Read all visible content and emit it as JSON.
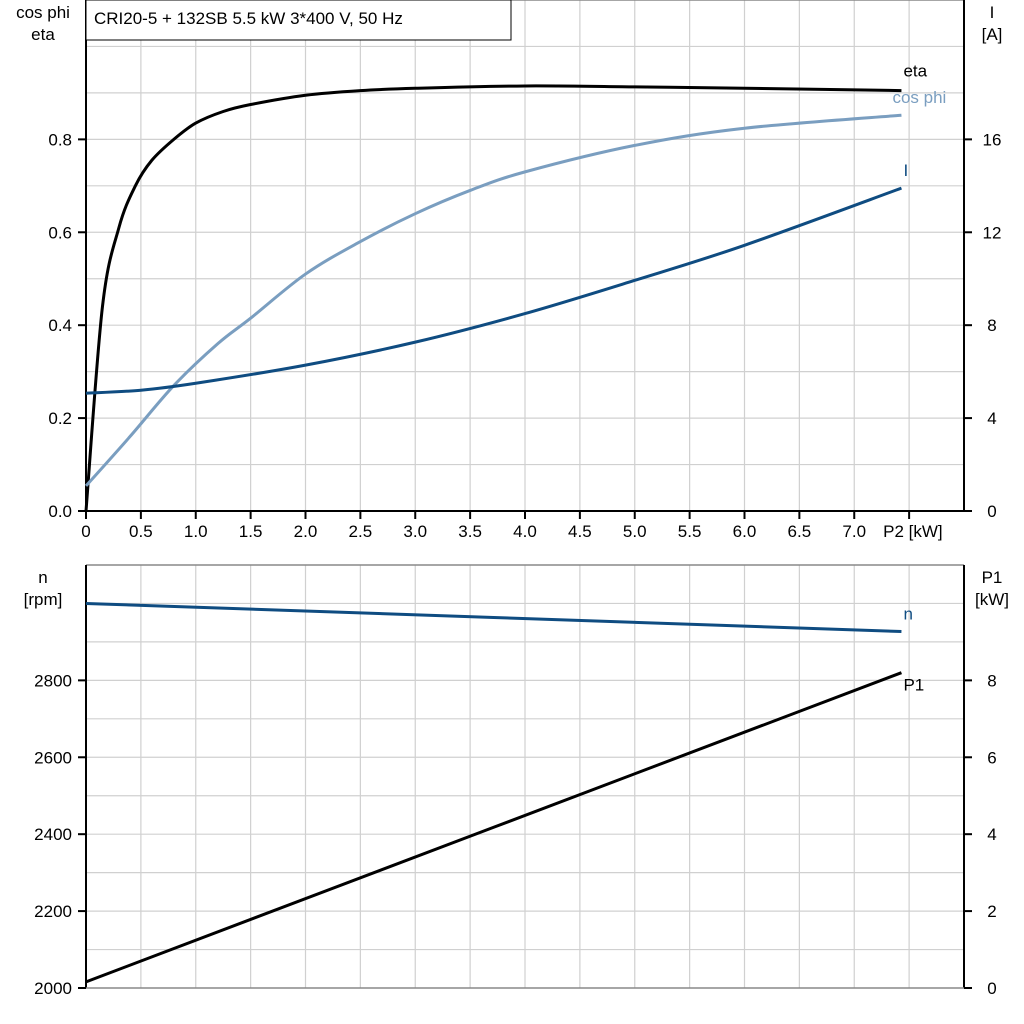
{
  "title": "CRI20-5 + 132SB   5.5 kW   3*400 V, 50 Hz",
  "colors": {
    "eta": "#000000",
    "cos_phi": "#7a9ec0",
    "I": "#0f4c81",
    "n": "#0f4c81",
    "P1": "#000000",
    "grid": "#d0d0d0"
  },
  "chart_data": [
    {
      "type": "line",
      "grid": true,
      "xlabel": "P2 [kW]",
      "xlim": [
        0,
        8
      ],
      "xticks": [
        "0",
        "0.5",
        "1.0",
        "1.5",
        "2.0",
        "2.5",
        "3.0",
        "3.5",
        "4.0",
        "4.5",
        "5.0",
        "5.5",
        "6.0",
        "6.5",
        "7.0"
      ],
      "ylabel_left": [
        "cos phi",
        "eta"
      ],
      "ylim_left": [
        0,
        1.1
      ],
      "yticks_left": [
        "0.0",
        "0.2",
        "0.4",
        "0.6",
        "0.8"
      ],
      "ylabel_right": [
        "I",
        "[A]"
      ],
      "ylim_right": [
        0,
        22
      ],
      "yticks_right": [
        "0",
        "4",
        "8",
        "12",
        "16"
      ],
      "series": [
        {
          "name": "eta",
          "axis": "left",
          "x": [
            0,
            0.15,
            0.3,
            0.45,
            0.6,
            0.8,
            1.0,
            1.25,
            1.5,
            2.0,
            2.5,
            3.0,
            4.0,
            5.0,
            6.0,
            7.43
          ],
          "y": [
            0,
            0.44,
            0.61,
            0.7,
            0.755,
            0.8,
            0.835,
            0.86,
            0.875,
            0.895,
            0.905,
            0.91,
            0.915,
            0.913,
            0.91,
            0.905
          ]
        },
        {
          "name": "cos phi",
          "axis": "left",
          "x": [
            0,
            0.4,
            0.8,
            1.2,
            1.5,
            2.0,
            2.5,
            3.0,
            3.5,
            4.0,
            5.0,
            6.0,
            7.43
          ],
          "y": [
            0.054,
            0.16,
            0.27,
            0.36,
            0.415,
            0.51,
            0.58,
            0.64,
            0.69,
            0.73,
            0.787,
            0.824,
            0.852
          ]
        },
        {
          "name": "I",
          "axis": "right",
          "x": [
            0,
            0.5,
            1.0,
            2.0,
            3.0,
            4.0,
            5.0,
            6.0,
            7.43
          ],
          "y": [
            5.07,
            5.2,
            5.5,
            6.28,
            7.27,
            8.5,
            9.93,
            11.44,
            13.9
          ]
        }
      ]
    },
    {
      "type": "line",
      "grid": true,
      "xlim": [
        0,
        8
      ],
      "ylabel_left": [
        "n",
        "[rpm]"
      ],
      "ylim_left": [
        2000,
        3100
      ],
      "yticks_left": [
        "2000",
        "2200",
        "2400",
        "2600",
        "2800"
      ],
      "ylabel_right": [
        "P1",
        "[kW]"
      ],
      "ylim_right": [
        0,
        11
      ],
      "yticks_right": [
        "0",
        "2",
        "4",
        "6",
        "8"
      ],
      "series": [
        {
          "name": "n",
          "axis": "left",
          "x": [
            0,
            7.43
          ],
          "y": [
            3000,
            2927
          ]
        },
        {
          "name": "P1",
          "axis": "right",
          "x": [
            0,
            7.43
          ],
          "y": [
            0.16,
            8.2
          ]
        }
      ]
    }
  ]
}
